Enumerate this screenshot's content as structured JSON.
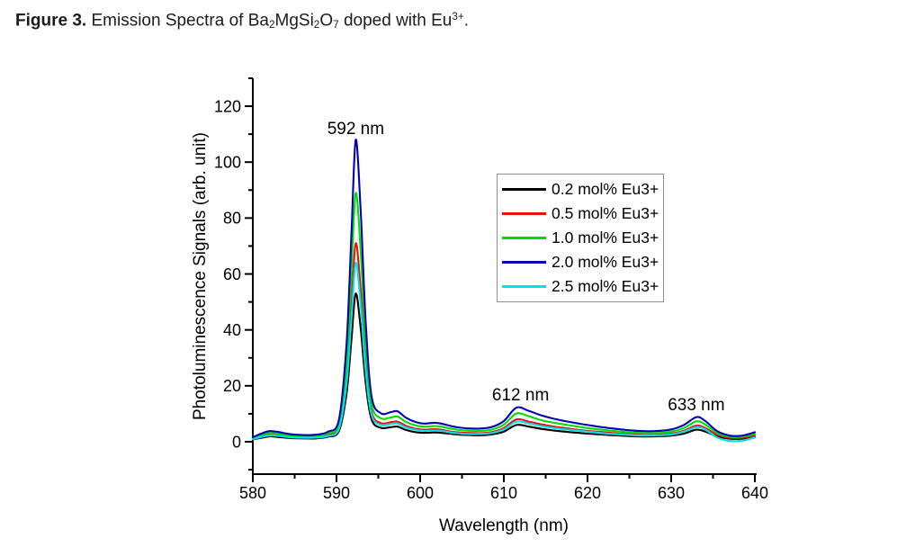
{
  "caption": {
    "plain": "Figure 3. Emission Spectra of Ba2MgSi2O7 doped with Eu3+.",
    "segments": [
      {
        "text": "Figure 3.",
        "style": "bold"
      },
      {
        "text": " Emission Spectra of Ba",
        "style": "normal"
      },
      {
        "text": "2",
        "style": "sub"
      },
      {
        "text": "MgSi",
        "style": "normal"
      },
      {
        "text": "2",
        "style": "sub"
      },
      {
        "text": "O",
        "style": "normal"
      },
      {
        "text": "7",
        "style": "sub"
      },
      {
        "text": " doped with Eu",
        "style": "normal"
      },
      {
        "text": "3+",
        "style": "sup"
      },
      {
        "text": ".",
        "style": "normal"
      }
    ]
  },
  "chart_data": {
    "type": "line",
    "title": "",
    "xlabel": "Wavelength (nm)",
    "ylabel": "Photoluminescence Signals (arb. unit)",
    "xlim": [
      580,
      640
    ],
    "ylim": [
      -12,
      129
    ],
    "x_major_ticks": [
      580,
      590,
      600,
      610,
      620,
      630,
      640
    ],
    "x_minor_ticks": [
      585,
      595,
      605,
      615,
      625,
      635
    ],
    "y_major_ticks": [
      0,
      20,
      40,
      60,
      80,
      100,
      120
    ],
    "y_minor_ticks": [
      -10,
      10,
      30,
      50,
      70,
      90,
      110,
      130
    ],
    "grid": false,
    "legend_position": "upper right",
    "annotations": [
      {
        "text": "592 nm",
        "x": 592.3,
        "y": 110.0
      },
      {
        "text": "612 nm",
        "x": 612.0,
        "y": 14.8
      },
      {
        "text": "633 nm",
        "x": 633.0,
        "y": 11.3
      }
    ],
    "x": [
      580,
      581,
      582,
      583,
      584.5,
      586,
      587.5,
      589,
      590.3,
      591.2,
      591.8,
      592.3,
      592.9,
      593.5,
      594.2,
      595.3,
      596.5,
      597.3,
      598.3,
      599.5,
      600.5,
      601.7,
      602.5,
      604,
      605.5,
      607,
      608.5,
      610,
      611.5,
      613,
      614.5,
      616,
      618,
      620,
      622,
      624,
      626,
      628,
      630,
      631.5,
      633,
      634,
      635.5,
      637,
      638.5,
      640
    ],
    "series": [
      {
        "label": "0.2 mol% Eu3+",
        "color": "#000000",
        "peak_nm": 592,
        "peak_value": 53,
        "values": [
          0.8,
          1.4,
          1.9,
          1.7,
          1.3,
          1.2,
          1.2,
          1.8,
          3.9,
          17.2,
          36.8,
          53,
          40.3,
          20.6,
          7.9,
          5,
          5.2,
          5.4,
          4.2,
          3.4,
          3.2,
          3.3,
          3.2,
          2.7,
          2.4,
          2.3,
          2.6,
          3.6,
          6,
          5.4,
          4.6,
          4,
          3.4,
          2.9,
          2.5,
          2.2,
          1.9,
          1.9,
          2.2,
          2.9,
          4.3,
          3.7,
          1.9,
          1.1,
          1.1,
          1.7
        ]
      },
      {
        "label": "0.5 mol% Eu3+",
        "color": "#e81010",
        "peak_nm": 592,
        "peak_value": 71,
        "values": [
          1.1,
          1.9,
          2.5,
          2.3,
          1.8,
          1.6,
          1.6,
          2.4,
          5.3,
          23,
          49.3,
          71,
          53.9,
          27.6,
          10.5,
          6.7,
          7,
          7.2,
          5.7,
          4.6,
          4.3,
          4.5,
          4.3,
          3.5,
          3.2,
          3.1,
          3.4,
          4.9,
          8,
          7.2,
          6.2,
          5.4,
          4.6,
          3.9,
          3.4,
          2.9,
          2.6,
          2.5,
          2.9,
          3.9,
          5.8,
          5,
          2.5,
          1.4,
          1.4,
          2.2
        ]
      },
      {
        "label": "1.0 mol% Eu3+",
        "color": "#00dd00",
        "peak_nm": 592,
        "peak_value": 89,
        "values": [
          1.3,
          2.4,
          3.1,
          2.9,
          2.2,
          2,
          2.1,
          3,
          6.6,
          28.8,
          61.8,
          89,
          67.6,
          34.6,
          13.2,
          8.4,
          8.7,
          9,
          7.1,
          5.8,
          5.4,
          5.6,
          5.4,
          4.5,
          4,
          3.9,
          4.3,
          6.1,
          10.1,
          9.1,
          7.7,
          6.8,
          5.8,
          4.9,
          4.2,
          3.6,
          3.2,
          3.1,
          3.6,
          4.9,
          7.3,
          6.3,
          3.1,
          1.8,
          1.8,
          2.8
        ]
      },
      {
        "label": "2.0 mol% Eu3+",
        "color": "#0000b8",
        "peak_nm": 592,
        "peak_value": 108,
        "values": [
          1.6,
          2.9,
          3.8,
          3.5,
          2.7,
          2.4,
          2.5,
          3.6,
          8,
          35,
          75,
          108,
          82,
          42,
          16,
          10.2,
          10.6,
          10.9,
          8.6,
          7,
          6.5,
          6.8,
          6.5,
          5.4,
          4.8,
          4.7,
          5.2,
          7.4,
          12.2,
          11,
          9.4,
          8.2,
          7,
          6,
          5.1,
          4.4,
          3.9,
          3.8,
          4.4,
          6,
          8.8,
          7.6,
          3.8,
          2.2,
          2.2,
          3.4
        ]
      },
      {
        "label": "2.5 mol% Eu3+",
        "color": "#00e0ee",
        "peak_nm": 592,
        "peak_value": 64,
        "values": [
          0.9,
          1.7,
          2.3,
          2.1,
          1.6,
          1.4,
          1.5,
          2.1,
          4.7,
          20.8,
          44.5,
          64,
          48.6,
          24.9,
          9.5,
          6,
          6.3,
          6.5,
          5.1,
          4.2,
          3.9,
          4,
          3.9,
          3.2,
          2.8,
          2.8,
          3.1,
          4.4,
          7.2,
          6.5,
          5.6,
          4.9,
          4.2,
          3.6,
          3,
          2.6,
          2.3,
          2.3,
          2.6,
          3.6,
          5.2,
          4.5,
          1.5,
          0.3,
          0.4,
          1.5
        ]
      }
    ]
  }
}
